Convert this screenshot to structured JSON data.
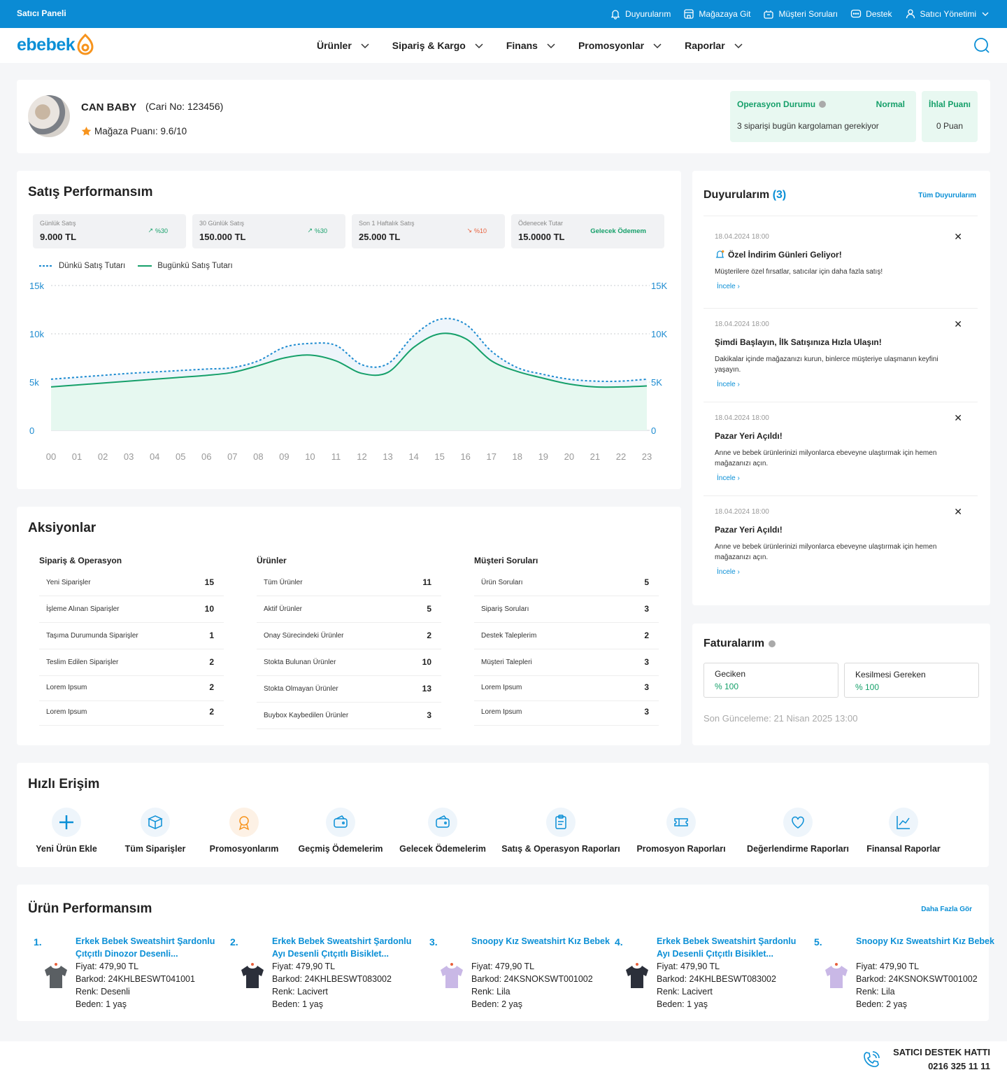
{
  "topbar": {
    "title": "Satıcı Paneli",
    "links": [
      "Duyurularım",
      "Mağazaya Git",
      "Müşteri Soruları",
      "Destek",
      "Satıcı Yönetimi"
    ]
  },
  "nav": {
    "logo": "ebebek",
    "menu": [
      "Ürünler",
      "Sipariş & Kargo",
      "Finans",
      "Promosyonlar",
      "Raporlar"
    ]
  },
  "store": {
    "name": "CAN BABY",
    "account": "(Cari No: 123456)",
    "rating": "Mağaza Puanı: 9.6/10",
    "operation_label": "Operasyon Durumu",
    "operation_status": "Normal",
    "operation_note": "3 siparişi bugün kargolaman gerekiyor",
    "violation_label": "İhlal Puanı",
    "violation_value": "0 Puan"
  },
  "sales": {
    "title": "Satış Performansım",
    "stats": [
      {
        "label": "Günlük Satış",
        "value": "9.000 TL",
        "change": "%30",
        "trend": "up"
      },
      {
        "label": "30 Günlük Satış",
        "value": "150.000 TL",
        "change": "%30",
        "trend": "up"
      },
      {
        "label": "Son 1 Haftalık Satış",
        "value": "25.000 TL",
        "change": "%10",
        "trend": "down"
      },
      {
        "label": "Ödenecek Tutar",
        "value": "15.0000 TL",
        "change": "Gelecek Ödemem",
        "trend": "link"
      }
    ],
    "legend": [
      "Dünkü Satış Tutarı",
      "Bugünkü Satış Tutarı"
    ]
  },
  "chart_data": {
    "type": "area",
    "x": [
      "00",
      "01",
      "02",
      "03",
      "04",
      "05",
      "06",
      "07",
      "08",
      "09",
      "10",
      "11",
      "12",
      "13",
      "14",
      "15",
      "16",
      "17",
      "18",
      "19",
      "20",
      "21",
      "22",
      "23"
    ],
    "series": [
      {
        "name": "Dünkü Satış Tutarı",
        "style": "dashed",
        "color": "#1d8bd0",
        "values": [
          5300,
          5500,
          5700,
          5900,
          6050,
          6200,
          6350,
          6500,
          7200,
          8600,
          9000,
          8800,
          6800,
          6900,
          9800,
          11500,
          11000,
          8200,
          6500,
          5800,
          5300,
          5100,
          5100,
          5300
        ]
      },
      {
        "name": "Bugünkü Satış Tutarı",
        "style": "solid",
        "color": "#16a06a",
        "values": [
          4500,
          4700,
          4900,
          5100,
          5300,
          5500,
          5700,
          6000,
          6700,
          7500,
          7800,
          7200,
          5900,
          6000,
          8600,
          10000,
          9500,
          7200,
          6100,
          5400,
          4800,
          4500,
          4500,
          4600
        ]
      }
    ],
    "y_left_ticks": [
      "0",
      "5k",
      "10k",
      "15k"
    ],
    "y_right_ticks": [
      "0",
      "5K",
      "10K",
      "15K"
    ],
    "ylim": [
      0,
      15000
    ],
    "grid": "dotted"
  },
  "actions": {
    "title": "Aksiyonlar",
    "columns": [
      {
        "title": "Sipariş & Operasyon",
        "rows": [
          {
            "label": "Yeni Siparişler",
            "count": "15"
          },
          {
            "label": "İşleme Alınan Siparişler",
            "count": "10"
          },
          {
            "label": "Taşıma Durumunda Siparişler",
            "count": "1"
          },
          {
            "label": "Teslim Edilen Siparişler",
            "count": "2"
          },
          {
            "label": "Lorem Ipsum",
            "count": "2"
          },
          {
            "label": "Lorem Ipsum",
            "count": "2"
          }
        ]
      },
      {
        "title": "Ürünler",
        "rows": [
          {
            "label": "Tüm Ürünler",
            "count": "11"
          },
          {
            "label": "Aktif Ürünler",
            "count": "5"
          },
          {
            "label": "Onay Sürecindeki Ürünler",
            "count": "2"
          },
          {
            "label": "Stokta Bulunan Ürünler",
            "count": "10"
          },
          {
            "label": "Stokta Olmayan Ürünler",
            "count": "13"
          },
          {
            "label": "Buybox Kaybedilen Ürünler",
            "count": "3"
          }
        ]
      },
      {
        "title": "Müşteri Soruları",
        "rows": [
          {
            "label": "Ürün Soruları",
            "count": "5"
          },
          {
            "label": "Sipariş Soruları",
            "count": "3"
          },
          {
            "label": "Destek Taleplerim",
            "count": "2"
          },
          {
            "label": "Müşteri Talepleri",
            "count": "3"
          },
          {
            "label": "Lorem Ipsum",
            "count": "3"
          },
          {
            "label": "Lorem Ipsum",
            "count": "3"
          }
        ]
      }
    ]
  },
  "announcements": {
    "title": "Duyurularım",
    "count": "(3)",
    "all_link": "Tüm Duyurularım",
    "items": [
      {
        "date": "18.04.2024 18:00",
        "title": "Özel İndirim Günleri Geliyor!",
        "body": "Müşterilere özel fırsatlar, satıcılar için daha fazla satış!",
        "link": "İncele ›"
      },
      {
        "date": "18.04.2024 18:00",
        "title": "Şimdi Başlayın, İlk Satışınıza Hızla Ulaşın!",
        "body": "Dakikalar içinde mağazanızı kurun, binlerce müşteriye ulaşmanın keyfini yaşayın.",
        "link": "İncele ›"
      },
      {
        "date": "18.04.2024 18:00",
        "title": "Pazar Yeri Açıldı!",
        "body": "Anne ve bebek ürünlerinizi milyonlarca ebeveyne ulaştırmak için hemen mağazanızı açın.",
        "link": "İncele ›"
      },
      {
        "date": "18.04.2024 18:00",
        "title": "Pazar Yeri Açıldı!",
        "body": "Anne ve bebek ürünlerinizi milyonlarca ebeveyne ulaştırmak için hemen mağazanızı açın.",
        "link": "İncele ›"
      }
    ]
  },
  "invoices": {
    "title": "Faturalarım",
    "boxes": [
      {
        "label": "Geciken",
        "value": "% 100"
      },
      {
        "label": "Kesilmesi Gereken",
        "value": "% 100"
      }
    ],
    "updated": "Son Günceleme: 21 Nisan 2025 13:00"
  },
  "quick": {
    "title": "Hızlı Erişim",
    "items": [
      {
        "label": "Yeni Ürün Ekle",
        "icon": "plus-icon"
      },
      {
        "label": "Tüm Siparişler",
        "icon": "box-icon"
      },
      {
        "label": "Promosyonlarım",
        "icon": "badge-icon"
      },
      {
        "label": "Geçmiş Ödemelerim",
        "icon": "wallet-icon"
      },
      {
        "label": "Gelecek Ödemelerim",
        "icon": "wallet-icon"
      },
      {
        "label": "Satış & Operasyon Raporları",
        "icon": "clipboard-icon"
      },
      {
        "label": "Promosyon Raporları",
        "icon": "ticket-icon"
      },
      {
        "label": "Değerlendirme Raporları",
        "icon": "heart-icon"
      },
      {
        "label": "Finansal Raporlar",
        "icon": "chart-icon"
      }
    ]
  },
  "products": {
    "title": "Ürün Performansım",
    "more": "Daha Fazla Gör",
    "items": [
      {
        "rank": "1.",
        "title": "Erkek Bebek Sweatshirt Şardonlu Çıtçıtlı Dinozor Desenli...",
        "price": "Fiyat: 479,90 TL",
        "barcode": "Barkod: 24KHLBESWT041001",
        "color": "Renk: Desenli",
        "size": "Beden: 1 yaş",
        "shirt": "#5a5f63"
      },
      {
        "rank": "2.",
        "title": "Erkek Bebek Sweatshirt Şardonlu Ayı Desenli Çıtçıtlı Bisiklet...",
        "price": "Fiyat: 479,90 TL",
        "barcode": "Barkod: 24KHLBESWT083002",
        "color": "Renk: Lacivert",
        "size": "Beden: 1 yaş",
        "shirt": "#2b2f3a"
      },
      {
        "rank": "3.",
        "title": "Snoopy Kız Sweatshirt Kız Bebek",
        "price": "Fiyat: 479,90 TL",
        "barcode": "Barkod: 24KSNOKSWT001002",
        "color": "Renk: Lila",
        "size": "Beden: 2 yaş",
        "shirt": "#c9b8e6"
      },
      {
        "rank": "4.",
        "title": "Erkek Bebek Sweatshirt Şardonlu Ayı Desenli Çıtçıtlı Bisiklet...",
        "price": "Fiyat: 479,90 TL",
        "barcode": "Barkod: 24KHLBESWT083002",
        "color": "Renk: Lacivert",
        "size": "Beden: 1 yaş",
        "shirt": "#2b2f3a"
      },
      {
        "rank": "5.",
        "title": "Snoopy Kız Sweatshirt Kız Bebek",
        "price": "Fiyat: 479,90 TL",
        "barcode": "Barkod: 24KSNOKSWT001002",
        "color": "Renk: Lila",
        "size": "Beden: 2 yaş",
        "shirt": "#c9b8e6"
      }
    ]
  },
  "footer": {
    "label": "SATICI DESTEK HATTI",
    "phone": "0216 325 11 11"
  },
  "colors": {
    "primary": "#0b8bd4",
    "accent": "#16a06a",
    "warn": "#e8603c",
    "logo_orange": "#f7941d"
  }
}
